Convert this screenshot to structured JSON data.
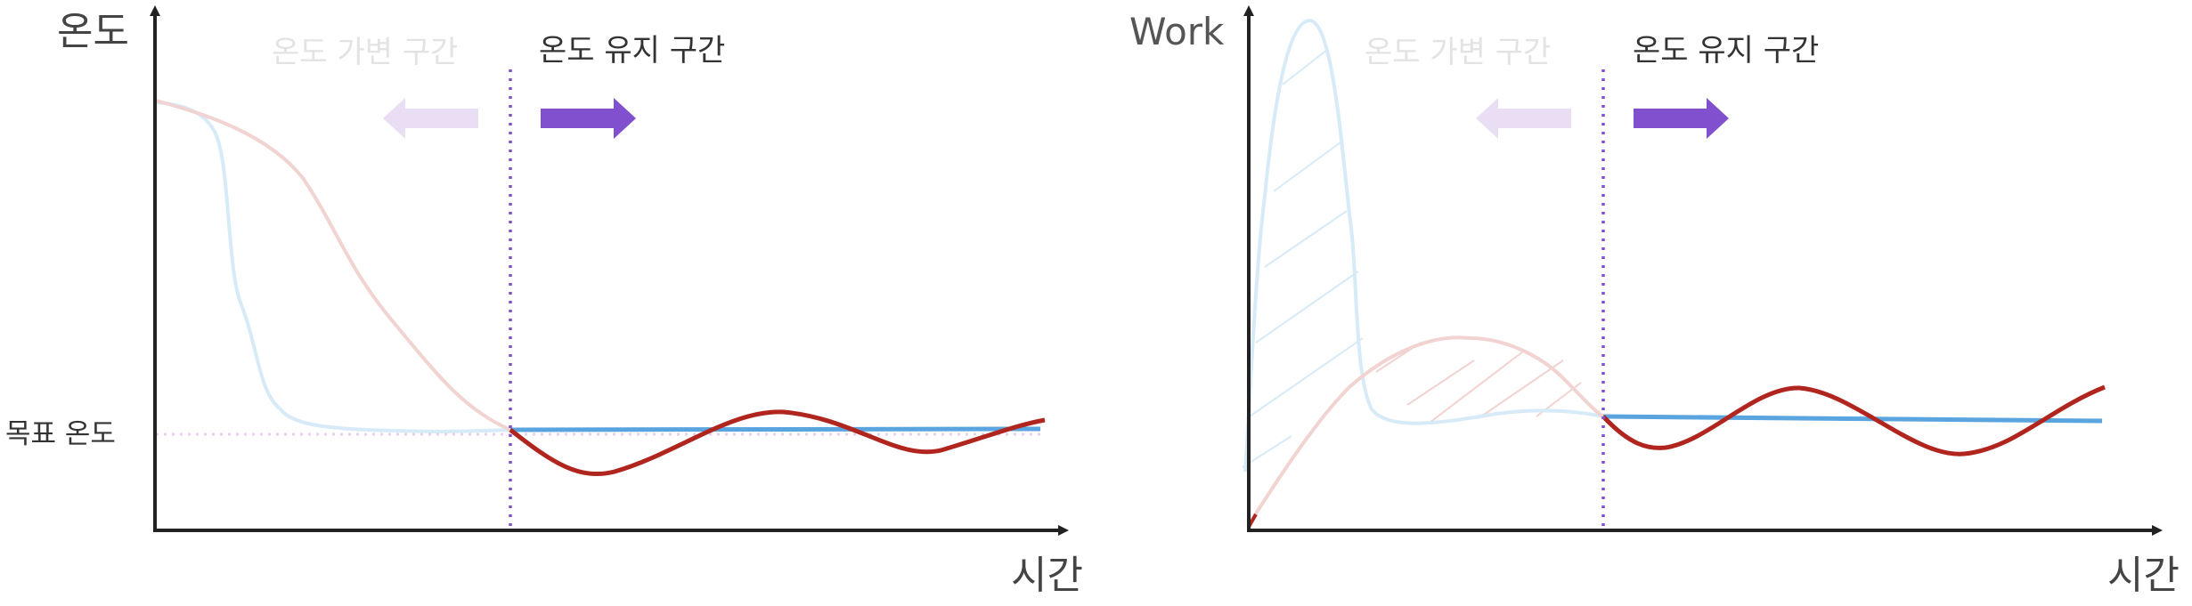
{
  "left_panel": {
    "y_axis_label": "온도",
    "x_axis_label": "시간",
    "target_label": "목표 온도",
    "zone_variable_label": "온도 가변 구간",
    "zone_hold_label": "온도 유지 구간"
  },
  "right_panel": {
    "y_axis_label": "Work",
    "x_axis_label": "시간",
    "zone_variable_label": "온도 가변 구간",
    "zone_hold_label": "온도 유지 구간"
  },
  "colors": {
    "axis": "#222222",
    "blue": "#5aa5e0",
    "blue_faded": "#d6eaf7",
    "red": "#b0261f",
    "red_faded": "#f1d3d1",
    "purple": "#8150cf",
    "purple_faded": "#e9def4",
    "faded_text": "#e3e3e3",
    "text": "#333333"
  }
}
